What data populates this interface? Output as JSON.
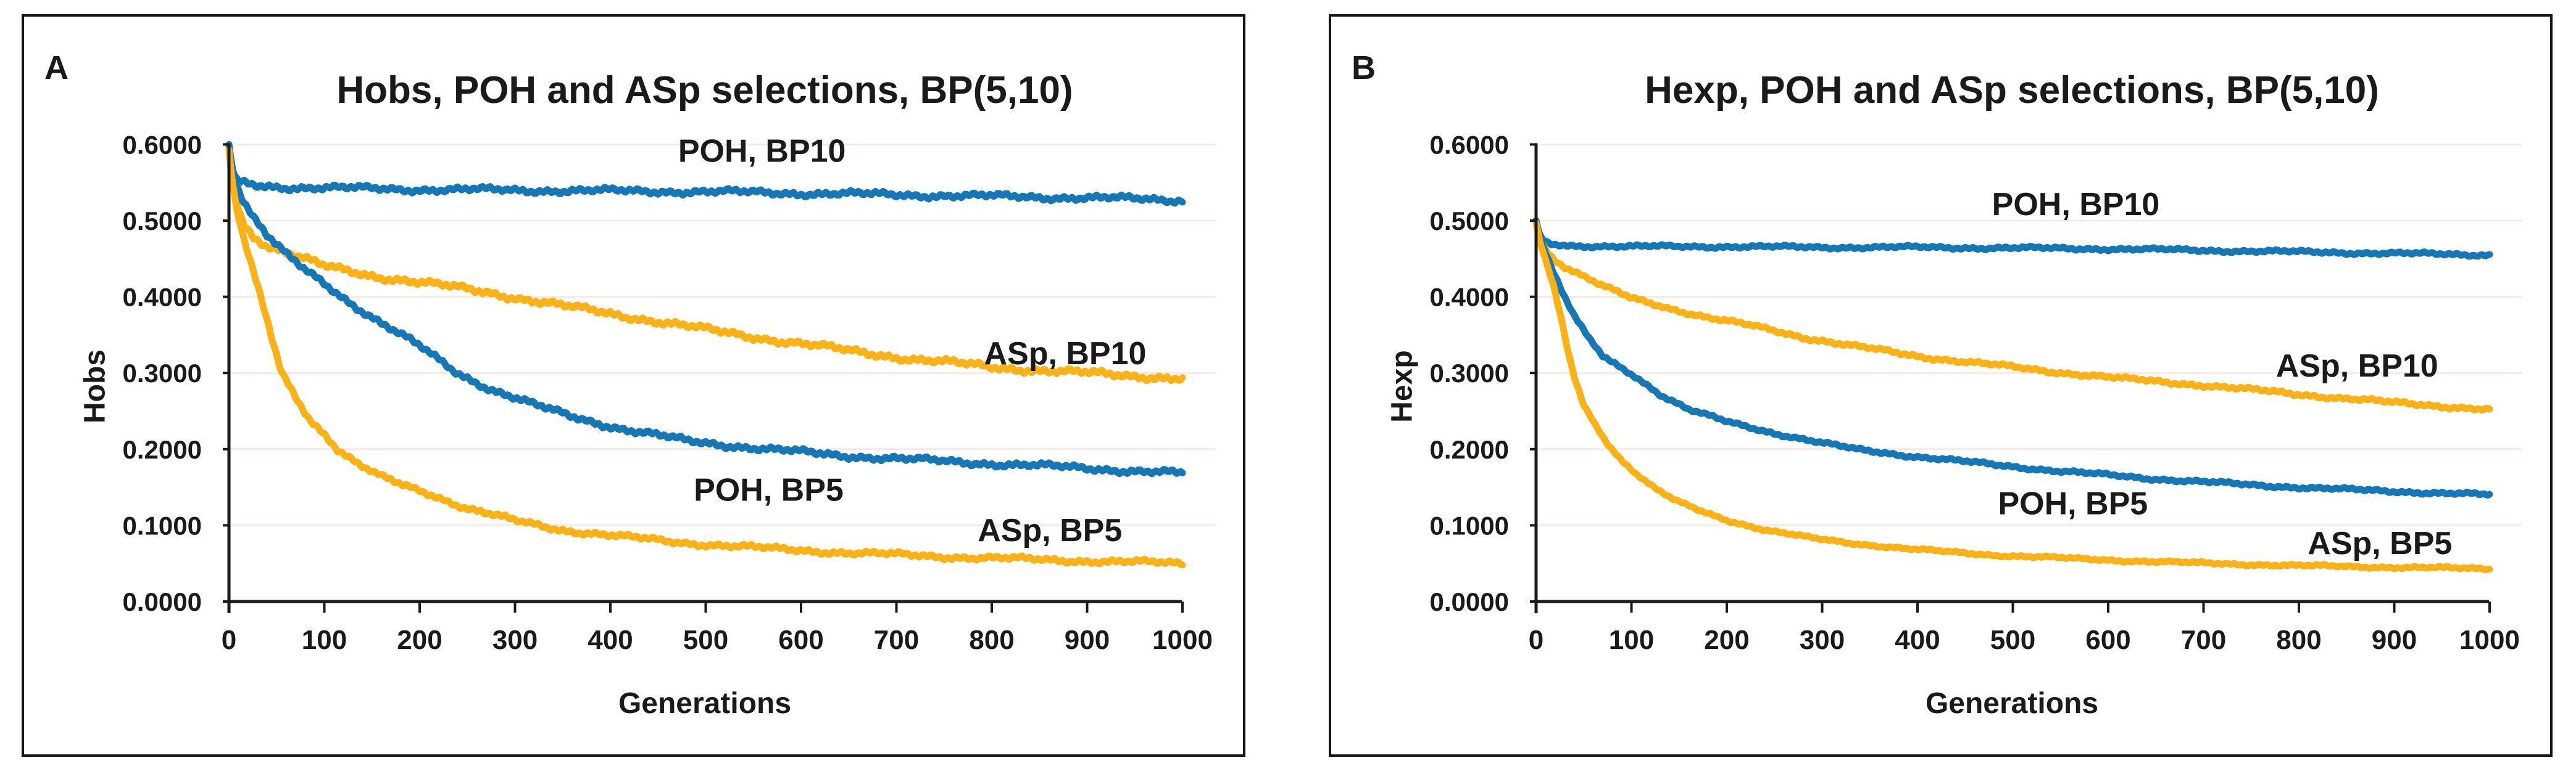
{
  "figure": {
    "background": "#ffffff",
    "panel_border_color": "#161616",
    "blue_color": "#1577b5",
    "orange_color": "#fcb216"
  },
  "chart_data": [
    {
      "type": "line",
      "panel_label": "A",
      "title": "Hobs, POH and ASp selections, BP(5,10)",
      "xlabel": "Generations",
      "ylabel": "Hobs",
      "xlim": [
        0,
        1000
      ],
      "ylim": [
        0.0,
        0.6
      ],
      "xticks": [
        0,
        100,
        200,
        300,
        400,
        500,
        600,
        700,
        800,
        900,
        1000
      ],
      "ytick_labels": [
        "0.6000",
        "0.5000",
        "0.4000",
        "0.3000",
        "0.2000",
        "0.1000",
        "0.0000"
      ],
      "ytick_values": [
        0.6,
        0.5,
        0.4,
        0.3,
        0.2,
        0.1,
        0.0
      ],
      "grid": "horizontal",
      "gridline_color": "#f8e7e3",
      "axis_color": "#1a1a1a",
      "legend_position": "inline-labels",
      "series": [
        {
          "name": "POH, BP10",
          "color": "#1577b5",
          "noise": 0.004,
          "label_at": [
            559,
            0.592
          ],
          "points": [
            [
              0,
              0.6
            ],
            [
              2,
              0.578
            ],
            [
              5,
              0.56
            ],
            [
              10,
              0.55
            ],
            [
              30,
              0.546
            ],
            [
              60,
              0.544
            ],
            [
              100,
              0.543
            ],
            [
              200,
              0.541
            ],
            [
              300,
              0.54
            ],
            [
              400,
              0.539
            ],
            [
              500,
              0.538
            ],
            [
              600,
              0.536
            ],
            [
              700,
              0.534
            ],
            [
              800,
              0.532
            ],
            [
              900,
              0.53
            ],
            [
              1000,
              0.527
            ]
          ]
        },
        {
          "name": "ASp, BP10",
          "color": "#fcb216",
          "noise": 0.0045,
          "label_at": [
            877,
            0.326
          ],
          "points": [
            [
              0,
              0.597
            ],
            [
              3,
              0.56
            ],
            [
              8,
              0.525
            ],
            [
              15,
              0.497
            ],
            [
              25,
              0.48
            ],
            [
              40,
              0.468
            ],
            [
              60,
              0.458
            ],
            [
              100,
              0.44
            ],
            [
              150,
              0.428
            ],
            [
              200,
              0.419
            ],
            [
              276,
              0.405
            ],
            [
              350,
              0.388
            ],
            [
              420,
              0.374
            ],
            [
              500,
              0.357
            ],
            [
              580,
              0.342
            ],
            [
              640,
              0.331
            ],
            [
              720,
              0.318
            ],
            [
              800,
              0.308
            ],
            [
              880,
              0.301
            ],
            [
              940,
              0.297
            ],
            [
              1000,
              0.293
            ]
          ]
        },
        {
          "name": "POH, BP5",
          "color": "#1577b5",
          "noise": 0.004,
          "label_at": [
            566,
            0.147
          ],
          "points": [
            [
              0,
              0.6
            ],
            [
              3,
              0.572
            ],
            [
              8,
              0.548
            ],
            [
              15,
              0.527
            ],
            [
              25,
              0.505
            ],
            [
              40,
              0.48
            ],
            [
              60,
              0.455
            ],
            [
              80,
              0.435
            ],
            [
              100,
              0.418
            ],
            [
              130,
              0.39
            ],
            [
              160,
              0.365
            ],
            [
              200,
              0.335
            ],
            [
              240,
              0.3
            ],
            [
              276,
              0.278
            ],
            [
              320,
              0.258
            ],
            [
              360,
              0.243
            ],
            [
              414,
              0.226
            ],
            [
              480,
              0.211
            ],
            [
              563,
              0.2
            ],
            [
              640,
              0.192
            ],
            [
              720,
              0.186
            ],
            [
              800,
              0.181
            ],
            [
              900,
              0.175
            ],
            [
              1000,
              0.168
            ]
          ]
        },
        {
          "name": "ASp, BP5",
          "color": "#fcb216",
          "noise": 0.0035,
          "label_at": [
            861,
            0.094
          ],
          "points": [
            [
              0,
              0.593
            ],
            [
              3,
              0.555
            ],
            [
              8,
              0.515
            ],
            [
              15,
              0.478
            ],
            [
              25,
              0.435
            ],
            [
              35,
              0.39
            ],
            [
              45,
              0.345
            ],
            [
              55,
              0.302
            ],
            [
              70,
              0.268
            ],
            [
              85,
              0.24
            ],
            [
              100,
              0.22
            ],
            [
              114,
              0.2
            ],
            [
              135,
              0.18
            ],
            [
              160,
              0.163
            ],
            [
              185,
              0.152
            ],
            [
              210,
              0.142
            ],
            [
              250,
              0.122
            ],
            [
              300,
              0.106
            ],
            [
              350,
              0.094
            ],
            [
              412,
              0.085
            ],
            [
              480,
              0.077
            ],
            [
              560,
              0.07
            ],
            [
              650,
              0.064
            ],
            [
              750,
              0.059
            ],
            [
              850,
              0.055
            ],
            [
              1000,
              0.05
            ]
          ]
        }
      ]
    },
    {
      "type": "line",
      "panel_label": "B",
      "title": "Hexp, POH and ASp selections, BP(5,10)",
      "xlabel": "Generations",
      "ylabel": "Hexp",
      "xlim": [
        0,
        1000
      ],
      "ylim": [
        0.0,
        0.6
      ],
      "xticks": [
        0,
        100,
        200,
        300,
        400,
        500,
        600,
        700,
        800,
        900,
        1000
      ],
      "ytick_labels": [
        "0.6000",
        "0.5000",
        "0.4000",
        "0.3000",
        "0.2000",
        "0.1000",
        "0.0000"
      ],
      "ytick_values": [
        0.6,
        0.5,
        0.4,
        0.3,
        0.2,
        0.1,
        0.0
      ],
      "grid": "horizontal",
      "gridline_color": "#f8e7e3",
      "axis_color": "#1a1a1a",
      "legend_position": "inline-labels",
      "series": [
        {
          "name": "POH, BP10",
          "color": "#1577b5",
          "noise": 0.0022,
          "label_at": [
            566,
            0.522
          ],
          "points": [
            [
              0,
              0.5
            ],
            [
              3,
              0.483
            ],
            [
              8,
              0.473
            ],
            [
              15,
              0.469
            ],
            [
              40,
              0.467
            ],
            [
              100,
              0.466
            ],
            [
              200,
              0.466
            ],
            [
              300,
              0.465
            ],
            [
              400,
              0.465
            ],
            [
              500,
              0.464
            ],
            [
              600,
              0.463
            ],
            [
              700,
              0.461
            ],
            [
              800,
              0.459
            ],
            [
              900,
              0.457
            ],
            [
              1000,
              0.455
            ]
          ]
        },
        {
          "name": "ASp, BP10",
          "color": "#fcb216",
          "noise": 0.0026,
          "label_at": [
            861,
            0.31
          ],
          "points": [
            [
              0,
              0.498
            ],
            [
              4,
              0.478
            ],
            [
              10,
              0.462
            ],
            [
              18,
              0.45
            ],
            [
              30,
              0.44
            ],
            [
              50,
              0.427
            ],
            [
              70,
              0.414
            ],
            [
              100,
              0.398
            ],
            [
              140,
              0.385
            ],
            [
              180,
              0.373
            ],
            [
              230,
              0.361
            ],
            [
              280,
              0.347
            ],
            [
              335,
              0.335
            ],
            [
              400,
              0.322
            ],
            [
              470,
              0.312
            ],
            [
              540,
              0.302
            ],
            [
              620,
              0.292
            ],
            [
              700,
              0.284
            ],
            [
              800,
              0.272
            ],
            [
              900,
              0.261
            ],
            [
              1000,
              0.252
            ]
          ]
        },
        {
          "name": "POH, BP5",
          "color": "#1577b5",
          "noise": 0.0022,
          "label_at": [
            563,
            0.129
          ],
          "points": [
            [
              0,
              0.5
            ],
            [
              4,
              0.48
            ],
            [
              10,
              0.458
            ],
            [
              18,
              0.432
            ],
            [
              28,
              0.404
            ],
            [
              40,
              0.375
            ],
            [
              55,
              0.345
            ],
            [
              70,
              0.322
            ],
            [
              90,
              0.306
            ],
            [
              105,
              0.295
            ],
            [
              130,
              0.272
            ],
            [
              160,
              0.252
            ],
            [
              200,
              0.236
            ],
            [
              250,
              0.221
            ],
            [
              300,
              0.208
            ],
            [
              335,
              0.2
            ],
            [
              400,
              0.19
            ],
            [
              470,
              0.181
            ],
            [
              550,
              0.171
            ],
            [
              650,
              0.161
            ],
            [
              750,
              0.153
            ],
            [
              850,
              0.147
            ],
            [
              1000,
              0.14
            ]
          ]
        },
        {
          "name": "ASp, BP5",
          "color": "#fcb216",
          "noise": 0.0018,
          "label_at": [
            885,
            0.077
          ],
          "points": [
            [
              0,
              0.497
            ],
            [
              4,
              0.472
            ],
            [
              10,
              0.448
            ],
            [
              18,
              0.415
            ],
            [
              26,
              0.372
            ],
            [
              33,
              0.33
            ],
            [
              40,
              0.295
            ],
            [
              50,
              0.258
            ],
            [
              62,
              0.232
            ],
            [
              75,
              0.208
            ],
            [
              90,
              0.185
            ],
            [
              105,
              0.168
            ],
            [
              125,
              0.148
            ],
            [
              145,
              0.133
            ],
            [
              170,
              0.12
            ],
            [
              200,
              0.107
            ],
            [
              240,
              0.094
            ],
            [
              290,
              0.083
            ],
            [
              335,
              0.076
            ],
            [
              400,
              0.068
            ],
            [
              480,
              0.061
            ],
            [
              570,
              0.056
            ],
            [
              680,
              0.051
            ],
            [
              800,
              0.047
            ],
            [
              1000,
              0.043
            ]
          ]
        }
      ]
    }
  ]
}
